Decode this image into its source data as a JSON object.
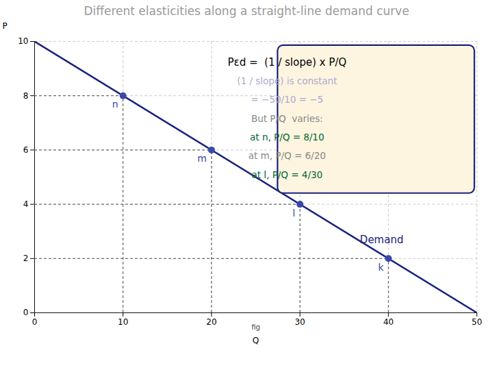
{
  "chart_data": {
    "type": "line",
    "title": "Different elasticities along a straight-line demand curve",
    "title_color": "#999999",
    "xlabel": "Q",
    "ylabel": "P",
    "xlim": [
      0,
      50
    ],
    "ylim": [
      0,
      10
    ],
    "xticks": [
      0,
      10,
      20,
      30,
      40,
      50
    ],
    "yticks": [
      0,
      2,
      4,
      6,
      8,
      10
    ],
    "grid": true,
    "series": [
      {
        "name": "Demand",
        "type": "line",
        "color": "#1a237e",
        "x": [
          0,
          50
        ],
        "values": [
          10,
          0
        ]
      },
      {
        "type": "scatter",
        "color": "#3949ab",
        "labels": [
          "n",
          "m",
          "l",
          "k"
        ],
        "x": [
          10,
          20,
          30,
          40
        ],
        "values": [
          8,
          6,
          4,
          2
        ]
      }
    ],
    "note": "fig",
    "annotation_box": {
      "color": "#fdf5e0",
      "edgecolor": "#1a237e"
    },
    "annotations": [
      {
        "text": "Pεd =  (1 / slope) x P/Q",
        "color": "#000000"
      },
      {
        "text": "(1 / slope) is constant",
        "color": "#aaaacc"
      },
      {
        "text": "= −50/10 = −5",
        "color": "#aaaacc"
      },
      {
        "text": "But P/Q  varies:",
        "color": "#888888"
      },
      {
        "text": "at n, P/Q = 8/10",
        "color": "#006633"
      },
      {
        "text": "at m, P/Q = 6/20",
        "color": "#888888"
      },
      {
        "text": "at l, P/Q = 4/30",
        "color": "#006633"
      }
    ]
  }
}
